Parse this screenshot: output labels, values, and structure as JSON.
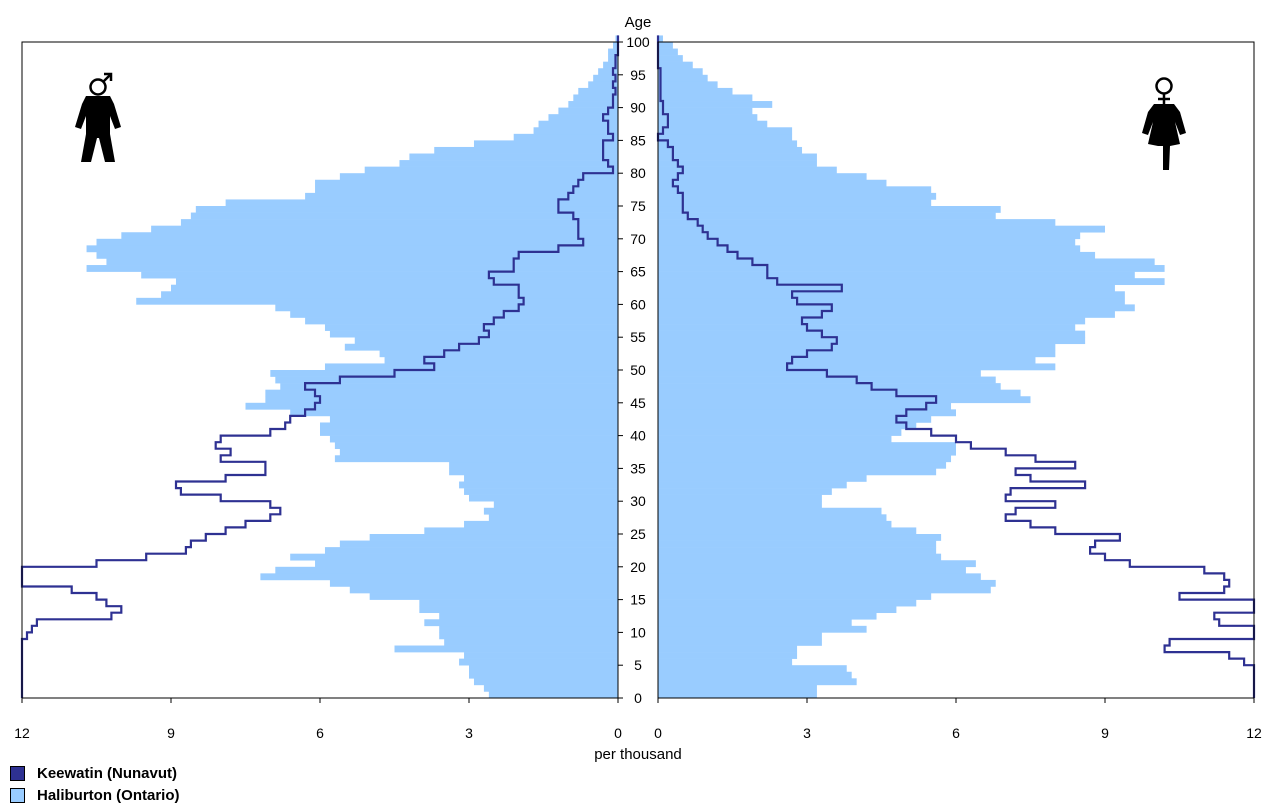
{
  "chart_data": {
    "type": "population-pyramid",
    "age_axis_title": "Age",
    "x_axis_title": "per thousand",
    "xlim": [
      0,
      12
    ],
    "age_range": [
      0,
      100
    ],
    "x_ticks": [
      12,
      9,
      6,
      3,
      0
    ],
    "x_ticks_right": [
      0,
      3,
      6,
      9,
      12
    ],
    "age_ticks": [
      0,
      5,
      10,
      15,
      20,
      25,
      30,
      35,
      40,
      45,
      50,
      55,
      60,
      65,
      70,
      75,
      80,
      85,
      90,
      95,
      100
    ],
    "colors": {
      "keewatin": "#2e3192",
      "haliburton": "#99ccff"
    },
    "legend": [
      {
        "name": "Keewatin (Nunavut)",
        "color": "#2e3192"
      },
      {
        "name": "Haliburton (Ontario)",
        "color": "#99ccff"
      }
    ],
    "icons": {
      "left": "male-icon",
      "right": "female-icon"
    },
    "keewatin_male": [
      [
        0,
        12.0
      ],
      [
        3,
        12.0
      ],
      [
        5,
        12.0
      ],
      [
        6,
        12.0
      ],
      [
        7,
        12.0
      ],
      [
        8,
        12.0
      ],
      [
        9,
        11.9
      ],
      [
        10,
        11.8
      ],
      [
        11,
        11.7
      ],
      [
        12,
        10.2
      ],
      [
        13,
        10.0
      ],
      [
        14,
        10.3
      ],
      [
        15,
        10.5
      ],
      [
        16,
        11.0
      ],
      [
        17,
        12.0
      ],
      [
        18,
        12.0
      ],
      [
        19,
        12.0
      ],
      [
        20,
        10.5
      ],
      [
        21,
        9.5
      ],
      [
        22,
        8.7
      ],
      [
        23,
        8.6
      ],
      [
        24,
        8.3
      ],
      [
        25,
        7.9
      ],
      [
        26,
        7.5
      ],
      [
        27,
        7.0
      ],
      [
        28,
        6.8
      ],
      [
        29,
        7.0
      ],
      [
        30,
        8.0
      ],
      [
        31,
        8.8
      ],
      [
        32,
        8.9
      ],
      [
        33,
        7.9
      ],
      [
        34,
        7.1
      ],
      [
        35,
        7.1
      ],
      [
        36,
        8.0
      ],
      [
        37,
        7.8
      ],
      [
        38,
        8.1
      ],
      [
        39,
        8.0
      ],
      [
        40,
        7.0
      ],
      [
        41,
        6.7
      ],
      [
        42,
        6.6
      ],
      [
        43,
        6.3
      ],
      [
        44,
        6.1
      ],
      [
        45,
        6.0
      ],
      [
        46,
        6.1
      ],
      [
        47,
        6.3
      ],
      [
        48,
        5.6
      ],
      [
        49,
        4.5
      ],
      [
        50,
        3.7
      ],
      [
        51,
        3.9
      ],
      [
        52,
        3.5
      ],
      [
        53,
        3.2
      ],
      [
        54,
        2.8
      ],
      [
        55,
        2.6
      ],
      [
        56,
        2.7
      ],
      [
        57,
        2.5
      ],
      [
        58,
        2.3
      ],
      [
        59,
        2.0
      ],
      [
        60,
        1.9
      ],
      [
        61,
        2.0
      ],
      [
        62,
        2.0
      ],
      [
        63,
        2.5
      ],
      [
        64,
        2.6
      ],
      [
        65,
        2.1
      ],
      [
        66,
        2.1
      ],
      [
        67,
        2.0
      ],
      [
        68,
        1.2
      ],
      [
        69,
        0.7
      ],
      [
        70,
        0.8
      ],
      [
        71,
        0.8
      ],
      [
        72,
        0.8
      ],
      [
        73,
        0.9
      ],
      [
        74,
        1.2
      ],
      [
        75,
        1.2
      ],
      [
        76,
        1.0
      ],
      [
        77,
        0.9
      ],
      [
        78,
        0.8
      ],
      [
        79,
        0.7
      ],
      [
        80,
        0.1
      ],
      [
        81,
        0.2
      ],
      [
        82,
        0.3
      ],
      [
        83,
        0.3
      ],
      [
        84,
        0.3
      ],
      [
        85,
        0.1
      ],
      [
        86,
        0.2
      ],
      [
        87,
        0.2
      ],
      [
        88,
        0.3
      ],
      [
        89,
        0.2
      ],
      [
        90,
        0.1
      ],
      [
        91,
        0.1
      ],
      [
        92,
        0.05
      ],
      [
        93,
        0.1
      ],
      [
        94,
        0.05
      ],
      [
        95,
        0.1
      ],
      [
        96,
        0.05
      ],
      [
        97,
        0.05
      ],
      [
        98,
        0.0
      ],
      [
        99,
        0.0
      ],
      [
        100,
        0.0
      ]
    ],
    "keewatin_female": [
      [
        0,
        12.0
      ],
      [
        1,
        12.0
      ],
      [
        2,
        12.0
      ],
      [
        3,
        12.0
      ],
      [
        4,
        12.0
      ],
      [
        5,
        11.8
      ],
      [
        6,
        11.5
      ],
      [
        7,
        10.2
      ],
      [
        8,
        10.3
      ],
      [
        9,
        12.0
      ],
      [
        10,
        12.0
      ],
      [
        11,
        11.3
      ],
      [
        12,
        11.2
      ],
      [
        13,
        12.0
      ],
      [
        14,
        12.0
      ],
      [
        15,
        10.5
      ],
      [
        16,
        11.4
      ],
      [
        17,
        11.5
      ],
      [
        18,
        11.4
      ],
      [
        19,
        11.0
      ],
      [
        20,
        9.5
      ],
      [
        21,
        9.0
      ],
      [
        22,
        8.7
      ],
      [
        23,
        8.8
      ],
      [
        24,
        9.3
      ],
      [
        25,
        8.0
      ],
      [
        26,
        7.5
      ],
      [
        27,
        7.0
      ],
      [
        28,
        7.2
      ],
      [
        29,
        8.0
      ],
      [
        30,
        7.0
      ],
      [
        31,
        7.1
      ],
      [
        32,
        8.6
      ],
      [
        33,
        7.5
      ],
      [
        34,
        7.2
      ],
      [
        35,
        8.4
      ],
      [
        36,
        7.6
      ],
      [
        37,
        7.0
      ],
      [
        38,
        6.3
      ],
      [
        39,
        6.0
      ],
      [
        40,
        5.5
      ],
      [
        41,
        5.0
      ],
      [
        42,
        4.8
      ],
      [
        43,
        5.0
      ],
      [
        44,
        5.4
      ],
      [
        45,
        5.6
      ],
      [
        46,
        4.8
      ],
      [
        47,
        4.3
      ],
      [
        48,
        4.0
      ],
      [
        49,
        3.4
      ],
      [
        50,
        2.6
      ],
      [
        51,
        2.7
      ],
      [
        52,
        3.0
      ],
      [
        53,
        3.5
      ],
      [
        54,
        3.6
      ],
      [
        55,
        3.3
      ],
      [
        56,
        3.0
      ],
      [
        57,
        2.9
      ],
      [
        58,
        3.3
      ],
      [
        59,
        3.5
      ],
      [
        60,
        2.8
      ],
      [
        61,
        2.7
      ],
      [
        62,
        3.7
      ],
      [
        63,
        2.4
      ],
      [
        64,
        2.2
      ],
      [
        65,
        2.2
      ],
      [
        66,
        1.9
      ],
      [
        67,
        1.6
      ],
      [
        68,
        1.4
      ],
      [
        69,
        1.2
      ],
      [
        70,
        1.0
      ],
      [
        71,
        0.9
      ],
      [
        72,
        0.8
      ],
      [
        73,
        0.6
      ],
      [
        74,
        0.5
      ],
      [
        75,
        0.5
      ],
      [
        76,
        0.5
      ],
      [
        77,
        0.4
      ],
      [
        78,
        0.3
      ],
      [
        79,
        0.4
      ],
      [
        80,
        0.5
      ],
      [
        81,
        0.4
      ],
      [
        82,
        0.3
      ],
      [
        83,
        0.3
      ],
      [
        84,
        0.2
      ],
      [
        85,
        0.0
      ],
      [
        86,
        0.1
      ],
      [
        87,
        0.2
      ],
      [
        88,
        0.2
      ],
      [
        89,
        0.1
      ],
      [
        90,
        0.1
      ],
      [
        91,
        0.05
      ],
      [
        92,
        0.05
      ],
      [
        93,
        0.05
      ],
      [
        94,
        0.05
      ],
      [
        95,
        0.05
      ],
      [
        96,
        0.0
      ],
      [
        97,
        0.0
      ],
      [
        98,
        0.0
      ],
      [
        99,
        0.0
      ],
      [
        100,
        0.0
      ]
    ],
    "haliburton_male": [
      2.6,
      2.7,
      2.9,
      3.0,
      3.0,
      3.2,
      3.1,
      4.5,
      3.5,
      3.6,
      3.6,
      3.9,
      3.6,
      4.0,
      4.0,
      5.0,
      5.4,
      5.8,
      7.2,
      6.9,
      6.1,
      6.6,
      5.9,
      5.6,
      5.0,
      3.9,
      3.1,
      2.6,
      2.7,
      2.5,
      3.0,
      3.1,
      3.2,
      3.1,
      3.4,
      3.4,
      5.7,
      5.6,
      5.7,
      5.8,
      6.0,
      6.0,
      5.8,
      6.6,
      7.5,
      7.1,
      7.1,
      6.8,
      6.9,
      7.0,
      5.9,
      4.7,
      4.8,
      5.5,
      5.3,
      5.8,
      5.9,
      6.3,
      6.6,
      6.9,
      9.7,
      9.2,
      9.0,
      8.9,
      9.6,
      10.7,
      10.3,
      10.5,
      10.7,
      10.5,
      10.0,
      9.4,
      8.8,
      8.6,
      8.5,
      7.9,
      6.3,
      6.1,
      6.1,
      5.6,
      5.1,
      4.4,
      4.2,
      3.7,
      2.9,
      2.1,
      1.7,
      1.6,
      1.4,
      1.2,
      1.0,
      0.9,
      0.8,
      0.6,
      0.5,
      0.4,
      0.3,
      0.2,
      0.2,
      0.1,
      0.05
    ],
    "haliburton_female": [
      3.2,
      3.2,
      4.0,
      3.9,
      3.8,
      2.7,
      2.8,
      2.8,
      3.3,
      3.3,
      4.2,
      3.9,
      4.4,
      4.8,
      5.2,
      5.5,
      6.7,
      6.8,
      6.5,
      6.2,
      6.4,
      5.7,
      5.6,
      5.6,
      5.7,
      5.2,
      4.7,
      4.6,
      4.5,
      3.3,
      3.3,
      3.5,
      3.8,
      4.2,
      5.6,
      5.8,
      5.9,
      6.0,
      6.0,
      4.7,
      4.9,
      5.2,
      5.5,
      6.0,
      5.9,
      7.5,
      7.3,
      6.9,
      6.8,
      6.5,
      8.0,
      7.6,
      8.0,
      8.0,
      8.6,
      8.6,
      8.4,
      8.6,
      9.2,
      9.6,
      9.4,
      9.4,
      9.2,
      10.2,
      9.6,
      10.2,
      10.0,
      8.8,
      8.5,
      8.4,
      8.5,
      9.0,
      8.0,
      6.8,
      6.9,
      5.5,
      5.6,
      5.5,
      4.6,
      4.2,
      3.6,
      3.2,
      3.2,
      2.9,
      2.8,
      2.7,
      2.7,
      2.2,
      2.0,
      1.9,
      2.3,
      1.9,
      1.5,
      1.2,
      1.0,
      0.9,
      0.7,
      0.5,
      0.4,
      0.3,
      0.1
    ]
  }
}
